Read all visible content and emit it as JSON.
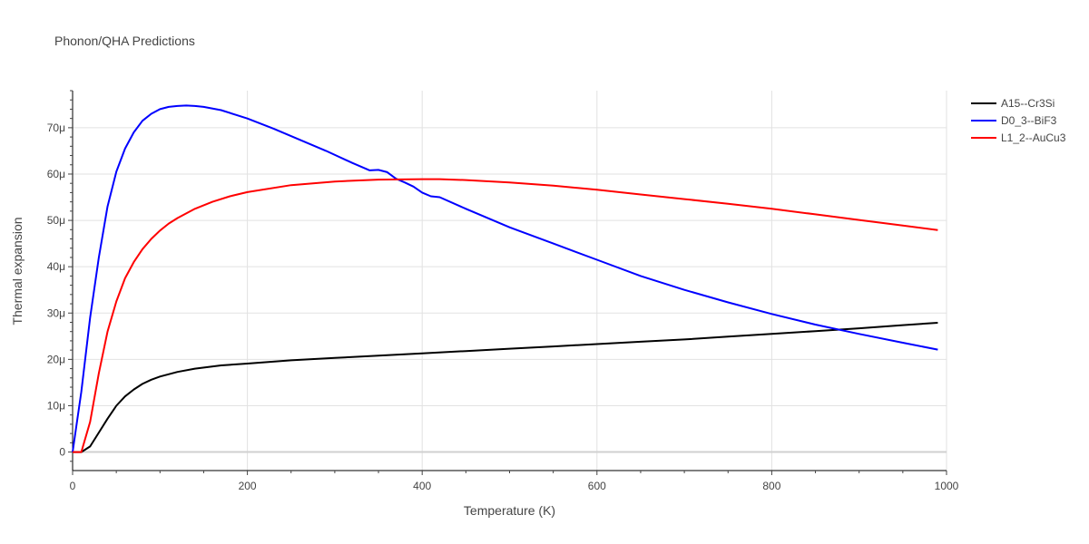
{
  "chart_data": {
    "type": "line",
    "title": "Phonon/QHA Predictions",
    "xlabel": "Temperature (K)",
    "ylabel": "Thermal expansion",
    "xlim": [
      0,
      1000
    ],
    "ylim": [
      -4e-06,
      7.8e-05
    ],
    "x_ticks": [
      0,
      200,
      400,
      600,
      800,
      1000
    ],
    "x_tick_labels": [
      "0",
      "200",
      "400",
      "600",
      "800",
      "1000"
    ],
    "y_ticks": [
      0,
      1e-05,
      2e-05,
      3e-05,
      4e-05,
      5e-05,
      6e-05,
      7e-05
    ],
    "y_tick_labels": [
      "0",
      "10μ",
      "20μ",
      "30μ",
      "40μ",
      "50μ",
      "60μ",
      "70μ"
    ],
    "grid": true,
    "legend_position": "top-right",
    "series": [
      {
        "name": "A15--Cr3Si",
        "color": "#000000",
        "x": [
          0,
          10,
          20,
          30,
          40,
          50,
          60,
          70,
          80,
          90,
          100,
          120,
          140,
          170,
          200,
          250,
          300,
          350,
          400,
          450,
          500,
          550,
          600,
          650,
          700,
          750,
          800,
          850,
          900,
          950,
          990
        ],
        "y": [
          0,
          0,
          1.2e-06,
          4.2e-06,
          7.2e-06,
          1e-05,
          1.2e-05,
          1.35e-05,
          1.47e-05,
          1.56e-05,
          1.63e-05,
          1.73e-05,
          1.8e-05,
          1.87e-05,
          1.91e-05,
          1.98e-05,
          2.03e-05,
          2.08e-05,
          2.13e-05,
          2.18e-05,
          2.23e-05,
          2.28e-05,
          2.33e-05,
          2.38e-05,
          2.43e-05,
          2.49e-05,
          2.55e-05,
          2.61e-05,
          2.67e-05,
          2.74e-05,
          2.79e-05
        ]
      },
      {
        "name": "D0_3--BiF3",
        "color": "#0000ff",
        "x": [
          0,
          10,
          20,
          30,
          40,
          50,
          60,
          70,
          80,
          90,
          100,
          110,
          120,
          130,
          140,
          150,
          170,
          200,
          230,
          260,
          290,
          320,
          340,
          350,
          360,
          370,
          380,
          390,
          400,
          410,
          420,
          450,
          500,
          550,
          600,
          650,
          700,
          750,
          800,
          850,
          900,
          950,
          990
        ],
        "y": [
          0,
          1.3e-05,
          2.9e-05,
          4.2e-05,
          5.3e-05,
          6.05e-05,
          6.55e-05,
          6.9e-05,
          7.15e-05,
          7.3e-05,
          7.4e-05,
          7.45e-05,
          7.47e-05,
          7.48e-05,
          7.47e-05,
          7.45e-05,
          7.38e-05,
          7.2e-05,
          6.98e-05,
          6.74e-05,
          6.5e-05,
          6.24e-05,
          6.08e-05,
          6.09e-05,
          6.04e-05,
          5.9e-05,
          5.82e-05,
          5.73e-05,
          5.6e-05,
          5.52e-05,
          5.5e-05,
          5.25e-05,
          4.85e-05,
          4.5e-05,
          4.15e-05,
          3.8e-05,
          3.5e-05,
          3.23e-05,
          2.98e-05,
          2.75e-05,
          2.55e-05,
          2.36e-05,
          2.21e-05
        ]
      },
      {
        "name": "L1_2--AuCu3",
        "color": "#ff0000",
        "x": [
          0,
          10,
          20,
          30,
          40,
          50,
          60,
          70,
          80,
          90,
          100,
          110,
          120,
          140,
          160,
          180,
          200,
          250,
          300,
          350,
          400,
          420,
          450,
          500,
          550,
          600,
          650,
          700,
          750,
          800,
          850,
          900,
          950,
          990
        ],
        "y": [
          0,
          0,
          6.5e-06,
          1.7e-05,
          2.6e-05,
          3.25e-05,
          3.75e-05,
          4.1e-05,
          4.38e-05,
          4.6e-05,
          4.78e-05,
          4.93e-05,
          5.05e-05,
          5.25e-05,
          5.4e-05,
          5.52e-05,
          5.61e-05,
          5.76e-05,
          5.84e-05,
          5.88e-05,
          5.89e-05,
          5.89e-05,
          5.87e-05,
          5.82e-05,
          5.75e-05,
          5.66e-05,
          5.56e-05,
          5.46e-05,
          5.36e-05,
          5.25e-05,
          5.13e-05,
          5.01e-05,
          4.89e-05,
          4.79e-05
        ]
      }
    ]
  }
}
